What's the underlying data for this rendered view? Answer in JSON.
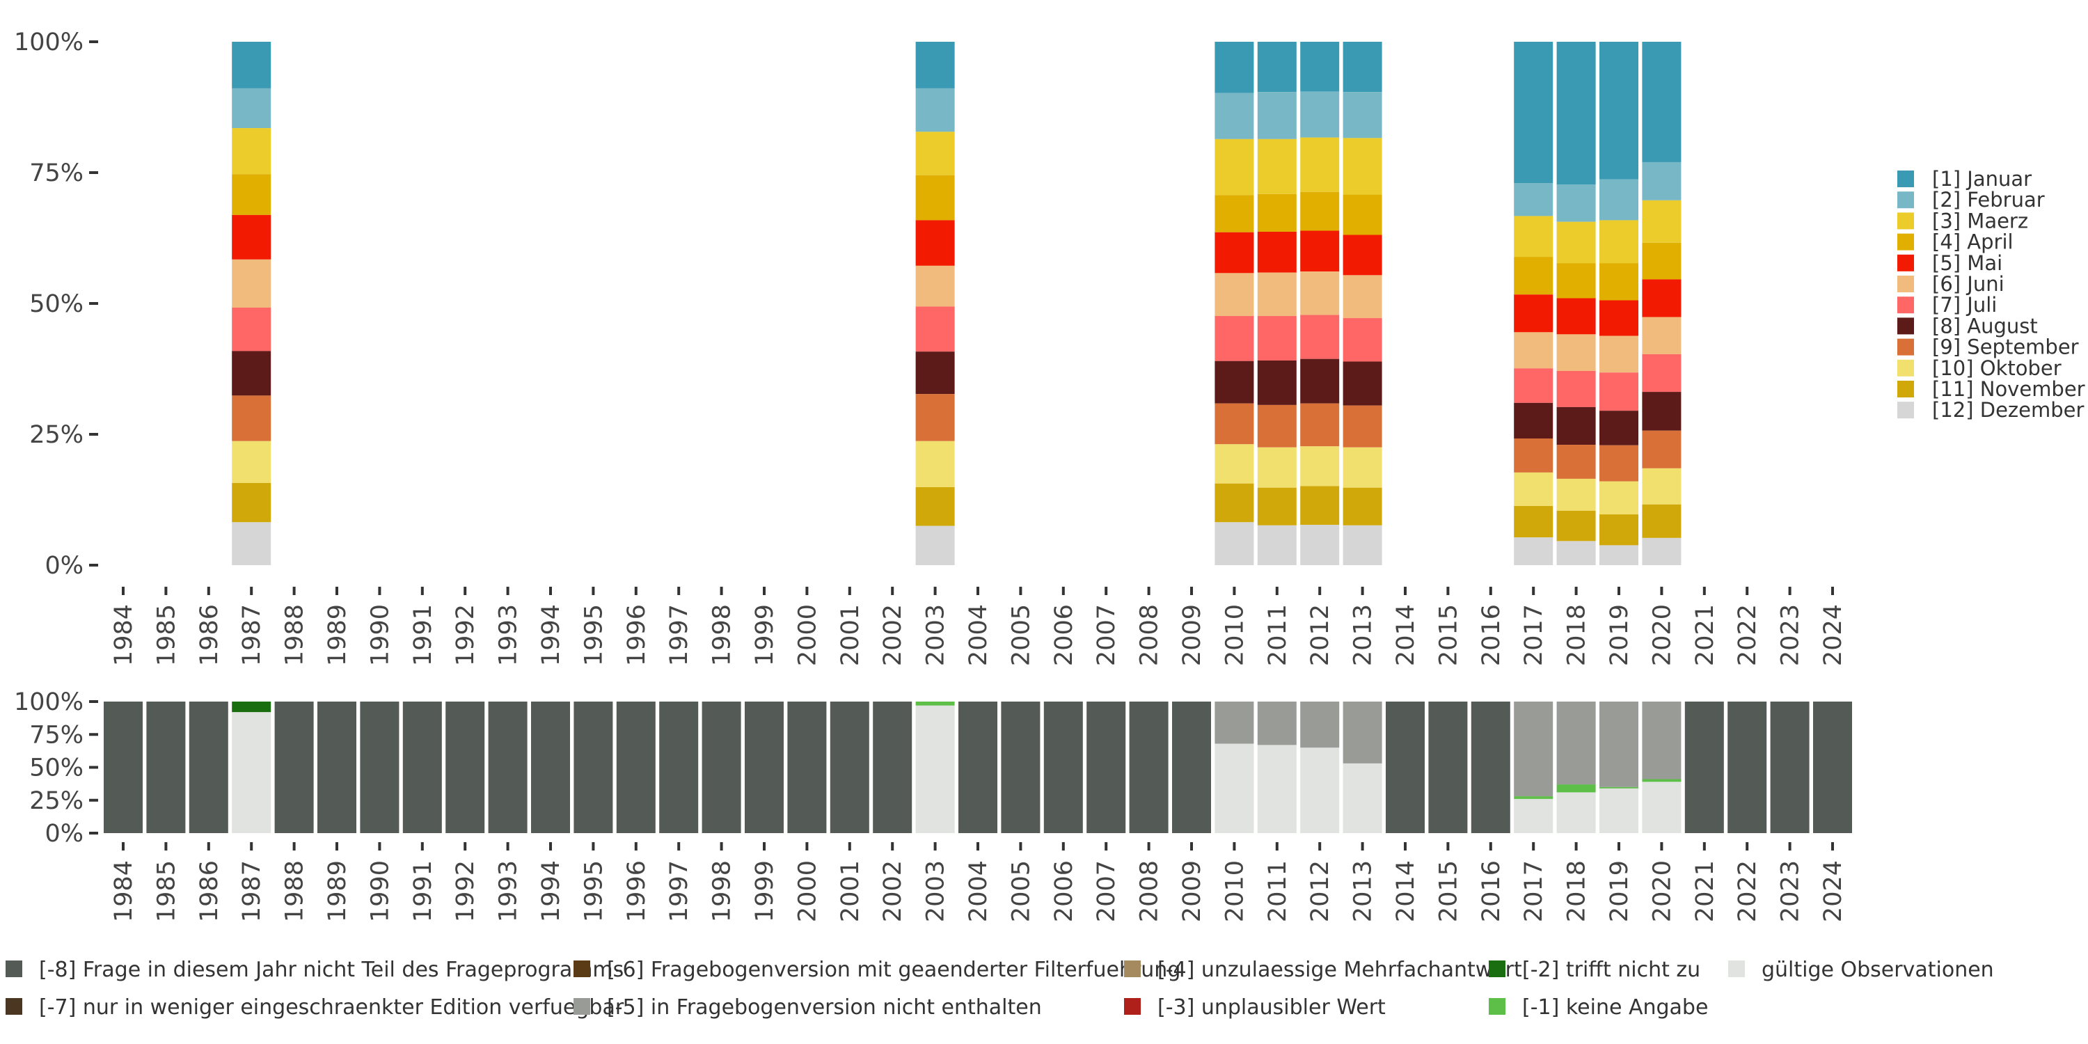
{
  "chart_data": [
    {
      "type": "stacked-bar",
      "name": "month-distribution",
      "years": [
        "1984",
        "1985",
        "1986",
        "1987",
        "1988",
        "1989",
        "1990",
        "1991",
        "1992",
        "1993",
        "1994",
        "1995",
        "1996",
        "1997",
        "1998",
        "1999",
        "2000",
        "2001",
        "2002",
        "2003",
        "2004",
        "2005",
        "2006",
        "2007",
        "2008",
        "2009",
        "2010",
        "2011",
        "2012",
        "2013",
        "2014",
        "2015",
        "2016",
        "2017",
        "2018",
        "2019",
        "2020",
        "2021",
        "2022",
        "2023",
        "2024"
      ],
      "ylim": [
        0,
        100
      ],
      "y_ticks": [
        "0%",
        "25%",
        "50%",
        "75%",
        "100%"
      ],
      "legend_position": "right",
      "categories": [
        {
          "label": "[1] Januar",
          "color": "#3A9AB4"
        },
        {
          "label": "[2] Februar",
          "color": "#78B7C5"
        },
        {
          "label": "[3] Maerz",
          "color": "#EBCC2A"
        },
        {
          "label": "[4] April",
          "color": "#E1AF00"
        },
        {
          "label": "[5] Mai",
          "color": "#F21A00"
        },
        {
          "label": "[6] Juni",
          "color": "#F2BB7E"
        },
        {
          "label": "[7] Juli",
          "color": "#FF6666"
        },
        {
          "label": "[8] August",
          "color": "#5C1A19"
        },
        {
          "label": "[9] September",
          "color": "#D87037"
        },
        {
          "label": "[10] Oktober",
          "color": "#F2E06E"
        },
        {
          "label": "[11] November",
          "color": "#D1A80A"
        },
        {
          "label": "[12] Dezember",
          "color": "#D6D6D6"
        }
      ],
      "data": {
        "1987": [
          8.9,
          7.6,
          8.8,
          7.8,
          8.5,
          9.2,
          8.3,
          8.5,
          8.7,
          8.0,
          7.5,
          8.2
        ],
        "2003": [
          8.9,
          8.3,
          8.3,
          8.6,
          8.7,
          7.8,
          8.6,
          8.1,
          9.0,
          8.8,
          7.4,
          7.5
        ],
        "2010": [
          9.8,
          8.8,
          10.7,
          7.1,
          7.8,
          8.2,
          8.6,
          8.1,
          7.8,
          7.5,
          7.4,
          8.2
        ],
        "2011": [
          9.6,
          9.0,
          10.5,
          7.2,
          7.8,
          8.3,
          8.5,
          8.5,
          8.1,
          7.7,
          7.2,
          7.6
        ],
        "2012": [
          9.5,
          8.8,
          10.4,
          7.4,
          7.8,
          8.3,
          8.4,
          8.5,
          8.2,
          7.6,
          7.4,
          7.7
        ],
        "2013": [
          9.6,
          8.8,
          10.8,
          7.7,
          7.7,
          8.2,
          8.3,
          8.4,
          8.0,
          7.7,
          7.2,
          7.6
        ],
        "2017": [
          27.0,
          6.3,
          7.8,
          7.2,
          7.2,
          6.9,
          6.6,
          6.8,
          6.5,
          6.4,
          6.0,
          5.3
        ],
        "2018": [
          27.3,
          7.1,
          7.9,
          6.7,
          6.9,
          7.0,
          6.9,
          7.2,
          6.5,
          6.1,
          5.8,
          4.6
        ],
        "2019": [
          26.3,
          7.8,
          8.2,
          7.1,
          6.8,
          7.0,
          7.3,
          6.6,
          6.9,
          6.3,
          5.9,
          3.8
        ],
        "2020": [
          23.0,
          7.3,
          8.1,
          7.0,
          7.2,
          7.1,
          7.2,
          7.4,
          7.2,
          6.9,
          6.4,
          5.2
        ]
      }
    },
    {
      "type": "stacked-bar",
      "name": "validity-distribution",
      "years": [
        "1984",
        "1985",
        "1986",
        "1987",
        "1988",
        "1989",
        "1990",
        "1991",
        "1992",
        "1993",
        "1994",
        "1995",
        "1996",
        "1997",
        "1998",
        "1999",
        "2000",
        "2001",
        "2002",
        "2003",
        "2004",
        "2005",
        "2006",
        "2007",
        "2008",
        "2009",
        "2010",
        "2011",
        "2012",
        "2013",
        "2014",
        "2015",
        "2016",
        "2017",
        "2018",
        "2019",
        "2020",
        "2021",
        "2022",
        "2023",
        "2024"
      ],
      "ylim": [
        0,
        100
      ],
      "y_ticks": [
        "0%",
        "25%",
        "50%",
        "75%",
        "100%"
      ],
      "legend_position": "bottom",
      "categories": [
        {
          "label": "gültige Observationen",
          "color": "#E0E3DF"
        },
        {
          "label": "[-1] keine Angabe",
          "color": "#5DBE48"
        },
        {
          "label": "[-2] trifft nicht zu",
          "color": "#1A6E10"
        },
        {
          "label": "[-3] unplausibler Wert",
          "color": "#B0201A"
        },
        {
          "label": "[-4] unzulaessige Mehrfachantwort",
          "color": "#A68A5F"
        },
        {
          "label": "[-5] in Fragebogenversion nicht enthalten",
          "color": "#999B96"
        },
        {
          "label": "[-6] Fragebogenversion mit geaenderter Filterfuehrung",
          "color": "#5A3B16"
        },
        {
          "label": "[-7] nur in weniger eingeschraenkter Edition verfuegbar",
          "color": "#4B3621"
        },
        {
          "label": "[-8] Frage in diesem Jahr nicht Teil des Frageprogramms",
          "color": "#545A55"
        }
      ],
      "legend_layout": [
        {
          "column": 0,
          "row": 0,
          "label": "[-8] Frage in diesem Jahr nicht Teil des Frageprogramms",
          "color": "#545A55"
        },
        {
          "column": 0,
          "row": 1,
          "label": "[-7] nur in weniger eingeschraenkter Edition verfuegbar",
          "color": "#4B3621"
        },
        {
          "column": 1,
          "row": 0,
          "label": "[-6] Fragebogenversion mit geaenderter Filterfuehrung",
          "color": "#5A3B16"
        },
        {
          "column": 1,
          "row": 1,
          "label": "[-5] in Fragebogenversion nicht enthalten",
          "color": "#999B96"
        },
        {
          "column": 2,
          "row": 0,
          "label": "[-4] unzulaessige Mehrfachantwort",
          "color": "#A68A5F"
        },
        {
          "column": 2,
          "row": 1,
          "label": "[-3] unplausibler Wert",
          "color": "#B0201A"
        },
        {
          "column": 3,
          "row": 0,
          "label": "[-2] trifft nicht zu",
          "color": "#1A6E10"
        },
        {
          "column": 3,
          "row": 1,
          "label": "[-1] keine Angabe",
          "color": "#5DBE48"
        },
        {
          "column": 4,
          "row": 0,
          "label": "gültige Observationen",
          "color": "#E0E3DF"
        }
      ],
      "data": {
        "1987": [
          92,
          0,
          8,
          0,
          0,
          0,
          0,
          0,
          0
        ],
        "2003": [
          97,
          3,
          0,
          0,
          0,
          0,
          0,
          0,
          0
        ],
        "2010": [
          68,
          0,
          0,
          0,
          0,
          32,
          0,
          0,
          0
        ],
        "2011": [
          67,
          0,
          0,
          0,
          0,
          33,
          0,
          0,
          0
        ],
        "2012": [
          65,
          0,
          0,
          0,
          0,
          35,
          0,
          0,
          0
        ],
        "2013": [
          53,
          0,
          0,
          0,
          0,
          47,
          0,
          0,
          0
        ],
        "2017": [
          26,
          2,
          0,
          0,
          0,
          72,
          0,
          0,
          0
        ],
        "2018": [
          31,
          6,
          0,
          0,
          0,
          63,
          0,
          0,
          0
        ],
        "2019": [
          34,
          1,
          0,
          0,
          0,
          65,
          0,
          0,
          0
        ],
        "2020": [
          39,
          2,
          0,
          0,
          0,
          59,
          0,
          0,
          0
        ]
      },
      "default_year": [
        0,
        0,
        0,
        0,
        0,
        0,
        0,
        0,
        100
      ]
    }
  ]
}
